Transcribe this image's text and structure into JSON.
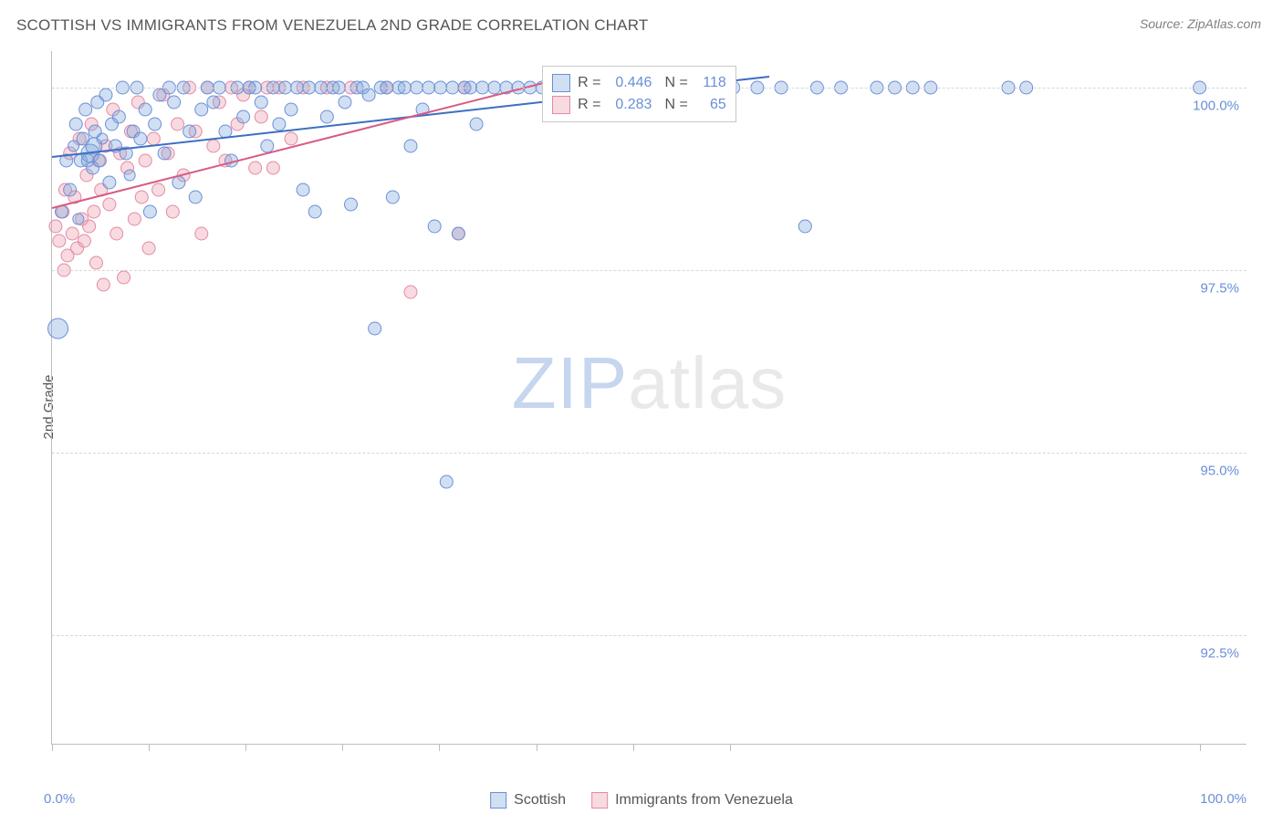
{
  "header": {
    "title": "SCOTTISH VS IMMIGRANTS FROM VENEZUELA 2ND GRADE CORRELATION CHART",
    "source": "Source: ZipAtlas.com"
  },
  "watermark": {
    "zip": "ZIP",
    "atlas": "atlas"
  },
  "y_axis": {
    "label": "2nd Grade"
  },
  "chart": {
    "type": "scatter",
    "xlim": [
      0,
      100
    ],
    "ylim": [
      91.0,
      100.5
    ],
    "x_ticks_pct": [
      0,
      8.1,
      16.2,
      24.3,
      32.4,
      40.5,
      48.6,
      56.7,
      96.0
    ],
    "x_tick_labels": {
      "left": "0.0%",
      "right": "100.0%"
    },
    "y_grid": [
      {
        "value": 92.5,
        "label": "92.5%"
      },
      {
        "value": 95.0,
        "label": "95.0%"
      },
      {
        "value": 97.5,
        "label": "97.5%"
      },
      {
        "value": 100.0,
        "label": "100.0%"
      }
    ],
    "background_color": "#ffffff",
    "grid_color": "#d8d8d8",
    "axis_color": "#bdbdbd",
    "tick_label_color": "#6a8fd8",
    "series": [
      {
        "name": "Scottish",
        "color_fill": "rgba(122,162,219,0.35)",
        "color_stroke": "#6a8fd8",
        "trend": {
          "x1": 0,
          "y1": 99.05,
          "x2": 60,
          "y2": 100.15,
          "color": "#3c6fc4",
          "width": 2
        },
        "stats": {
          "R": "0.446",
          "N": "118"
        },
        "points": [
          [
            0.5,
            96.7,
            11
          ],
          [
            0.8,
            98.3,
            7
          ],
          [
            1.2,
            99.0,
            7
          ],
          [
            1.5,
            98.6,
            7
          ],
          [
            1.8,
            99.2,
            6
          ],
          [
            2.0,
            99.5,
            7
          ],
          [
            2.2,
            98.2,
            6
          ],
          [
            2.4,
            99.0,
            7
          ],
          [
            2.6,
            99.3,
            7
          ],
          [
            2.8,
            99.7,
            7
          ],
          [
            3.0,
            99.0,
            7
          ],
          [
            3.2,
            99.1,
            10
          ],
          [
            3.4,
            98.9,
            7
          ],
          [
            3.6,
            99.4,
            7
          ],
          [
            3.8,
            99.8,
            7
          ],
          [
            4.0,
            99.0,
            7
          ],
          [
            4.2,
            99.3,
            6
          ],
          [
            4.5,
            99.9,
            7
          ],
          [
            4.8,
            98.7,
            7
          ],
          [
            5.0,
            99.5,
            7
          ],
          [
            5.3,
            99.2,
            7
          ],
          [
            5.6,
            99.6,
            7
          ],
          [
            5.9,
            100.0,
            7
          ],
          [
            6.2,
            99.1,
            7
          ],
          [
            6.5,
            98.8,
            6
          ],
          [
            6.8,
            99.4,
            7
          ],
          [
            7.1,
            100.0,
            7
          ],
          [
            7.4,
            99.3,
            7
          ],
          [
            7.8,
            99.7,
            7
          ],
          [
            8.2,
            98.3,
            7
          ],
          [
            8.6,
            99.5,
            7
          ],
          [
            9.0,
            99.9,
            7
          ],
          [
            9.4,
            99.1,
            7
          ],
          [
            9.8,
            100.0,
            7
          ],
          [
            10.2,
            99.8,
            7
          ],
          [
            10.6,
            98.7,
            7
          ],
          [
            11.0,
            100.0,
            7
          ],
          [
            11.5,
            99.4,
            7
          ],
          [
            12.0,
            98.5,
            7
          ],
          [
            12.5,
            99.7,
            7
          ],
          [
            13.0,
            100.0,
            7
          ],
          [
            13.5,
            99.8,
            7
          ],
          [
            14.0,
            100.0,
            7
          ],
          [
            14.5,
            99.4,
            7
          ],
          [
            15.0,
            99.0,
            7
          ],
          [
            15.5,
            100.0,
            7
          ],
          [
            16.0,
            99.6,
            7
          ],
          [
            16.5,
            100.0,
            7
          ],
          [
            17.0,
            100.0,
            7
          ],
          [
            17.5,
            99.8,
            7
          ],
          [
            18.0,
            99.2,
            7
          ],
          [
            18.5,
            100.0,
            7
          ],
          [
            19.0,
            99.5,
            7
          ],
          [
            19.5,
            100.0,
            7
          ],
          [
            20.0,
            99.7,
            7
          ],
          [
            20.5,
            100.0,
            7
          ],
          [
            21.0,
            98.6,
            7
          ],
          [
            21.5,
            100.0,
            7
          ],
          [
            22.0,
            98.3,
            7
          ],
          [
            22.5,
            100.0,
            7
          ],
          [
            23.0,
            99.6,
            7
          ],
          [
            23.5,
            100.0,
            7
          ],
          [
            24.0,
            100.0,
            7
          ],
          [
            24.5,
            99.8,
            7
          ],
          [
            25.0,
            98.4,
            7
          ],
          [
            25.5,
            100.0,
            7
          ],
          [
            26.0,
            100.0,
            7
          ],
          [
            26.5,
            99.9,
            7
          ],
          [
            27.0,
            96.7,
            7
          ],
          [
            27.5,
            100.0,
            7
          ],
          [
            28.0,
            100.0,
            7
          ],
          [
            28.5,
            98.5,
            7
          ],
          [
            29.0,
            100.0,
            7
          ],
          [
            29.5,
            100.0,
            7
          ],
          [
            30.0,
            99.2,
            7
          ],
          [
            30.5,
            100.0,
            7
          ],
          [
            31.0,
            99.7,
            7
          ],
          [
            31.5,
            100.0,
            7
          ],
          [
            32.0,
            98.1,
            7
          ],
          [
            32.5,
            100.0,
            7
          ],
          [
            33.0,
            94.6,
            7
          ],
          [
            33.5,
            100.0,
            7
          ],
          [
            34.0,
            98.0,
            7
          ],
          [
            34.5,
            100.0,
            7
          ],
          [
            35.0,
            100.0,
            7
          ],
          [
            35.5,
            99.5,
            7
          ],
          [
            36.0,
            100.0,
            7
          ],
          [
            37.0,
            100.0,
            7
          ],
          [
            38.0,
            100.0,
            7
          ],
          [
            39.0,
            100.0,
            7
          ],
          [
            40.0,
            100.0,
            7
          ],
          [
            41.0,
            100.0,
            7
          ],
          [
            42.0,
            100.0,
            7
          ],
          [
            43.0,
            99.8,
            7
          ],
          [
            44.0,
            100.0,
            7
          ],
          [
            45.0,
            100.0,
            7
          ],
          [
            46.0,
            100.0,
            7
          ],
          [
            47.0,
            100.0,
            7
          ],
          [
            48.0,
            100.0,
            7
          ],
          [
            49.0,
            100.0,
            7
          ],
          [
            50.0,
            100.0,
            7
          ],
          [
            51.0,
            100.0,
            7
          ],
          [
            53.0,
            100.0,
            7
          ],
          [
            55.0,
            100.0,
            7
          ],
          [
            57.0,
            100.0,
            7
          ],
          [
            59.0,
            100.0,
            7
          ],
          [
            61.0,
            100.0,
            7
          ],
          [
            63.0,
            98.1,
            7
          ],
          [
            64.0,
            100.0,
            7
          ],
          [
            66.0,
            100.0,
            7
          ],
          [
            69.0,
            100.0,
            7
          ],
          [
            70.5,
            100.0,
            7
          ],
          [
            72.0,
            100.0,
            7
          ],
          [
            73.5,
            100.0,
            7
          ],
          [
            80.0,
            100.0,
            7
          ],
          [
            81.5,
            100.0,
            7
          ],
          [
            96.0,
            100.0,
            7
          ],
          [
            3.5,
            99.2,
            9
          ]
        ]
      },
      {
        "name": "Immigrants from Venezuela",
        "color_fill": "rgba(235,150,170,0.35)",
        "color_stroke": "#e38aa3",
        "trend": {
          "x1": 0,
          "y1": 98.35,
          "x2": 42,
          "y2": 100.1,
          "color": "#d85b84",
          "width": 2
        },
        "stats": {
          "R": "0.283",
          "N": "65"
        },
        "points": [
          [
            0.3,
            98.1,
            7
          ],
          [
            0.6,
            97.9,
            7
          ],
          [
            0.9,
            98.3,
            7
          ],
          [
            1.1,
            98.6,
            7
          ],
          [
            1.3,
            97.7,
            7
          ],
          [
            1.5,
            99.1,
            7
          ],
          [
            1.7,
            98.0,
            7
          ],
          [
            1.9,
            98.5,
            7
          ],
          [
            2.1,
            97.8,
            7
          ],
          [
            2.3,
            99.3,
            7
          ],
          [
            2.5,
            98.2,
            7
          ],
          [
            2.7,
            97.9,
            7
          ],
          [
            2.9,
            98.8,
            7
          ],
          [
            3.1,
            98.1,
            7
          ],
          [
            3.3,
            99.5,
            7
          ],
          [
            3.5,
            98.3,
            7
          ],
          [
            3.7,
            97.6,
            7
          ],
          [
            3.9,
            99.0,
            7
          ],
          [
            4.1,
            98.6,
            7
          ],
          [
            4.3,
            97.3,
            7
          ],
          [
            4.5,
            99.2,
            7
          ],
          [
            4.8,
            98.4,
            7
          ],
          [
            5.1,
            99.7,
            7
          ],
          [
            5.4,
            98.0,
            7
          ],
          [
            5.7,
            99.1,
            7
          ],
          [
            6.0,
            97.4,
            7
          ],
          [
            6.3,
            98.9,
            7
          ],
          [
            6.6,
            99.4,
            7
          ],
          [
            6.9,
            98.2,
            7
          ],
          [
            7.2,
            99.8,
            7
          ],
          [
            7.5,
            98.5,
            7
          ],
          [
            7.8,
            99.0,
            7
          ],
          [
            8.1,
            97.8,
            7
          ],
          [
            8.5,
            99.3,
            7
          ],
          [
            8.9,
            98.6,
            7
          ],
          [
            9.3,
            99.9,
            7
          ],
          [
            9.7,
            99.1,
            7
          ],
          [
            10.1,
            98.3,
            7
          ],
          [
            10.5,
            99.5,
            7
          ],
          [
            11.0,
            98.8,
            7
          ],
          [
            11.5,
            100.0,
            7
          ],
          [
            12.0,
            99.4,
            7
          ],
          [
            12.5,
            98.0,
            7
          ],
          [
            13.0,
            100.0,
            7
          ],
          [
            13.5,
            99.2,
            7
          ],
          [
            14.0,
            99.8,
            7
          ],
          [
            14.5,
            99.0,
            7
          ],
          [
            15.0,
            100.0,
            7
          ],
          [
            15.5,
            99.5,
            7
          ],
          [
            16.0,
            99.9,
            7
          ],
          [
            16.5,
            100.0,
            7
          ],
          [
            17.0,
            98.9,
            7
          ],
          [
            17.5,
            99.6,
            7
          ],
          [
            18.0,
            100.0,
            7
          ],
          [
            18.5,
            98.9,
            7
          ],
          [
            19.0,
            100.0,
            7
          ],
          [
            20.0,
            99.3,
            7
          ],
          [
            21.0,
            100.0,
            7
          ],
          [
            23.0,
            100.0,
            7
          ],
          [
            25.0,
            100.0,
            7
          ],
          [
            28.0,
            100.0,
            7
          ],
          [
            30.0,
            97.2,
            7
          ],
          [
            34.0,
            98.0,
            7
          ],
          [
            34.5,
            100.0,
            7
          ],
          [
            1.0,
            97.5,
            7
          ]
        ]
      }
    ]
  },
  "stat_box": {
    "R_label": "R =",
    "N_label": "N ="
  },
  "bottom_legend": {
    "items": [
      {
        "label": "Scottish",
        "fill": "rgba(122,162,219,0.35)",
        "stroke": "#6a8fd8"
      },
      {
        "label": "Immigrants from Venezuela",
        "fill": "rgba(235,150,170,0.35)",
        "stroke": "#e38aa3"
      }
    ]
  }
}
